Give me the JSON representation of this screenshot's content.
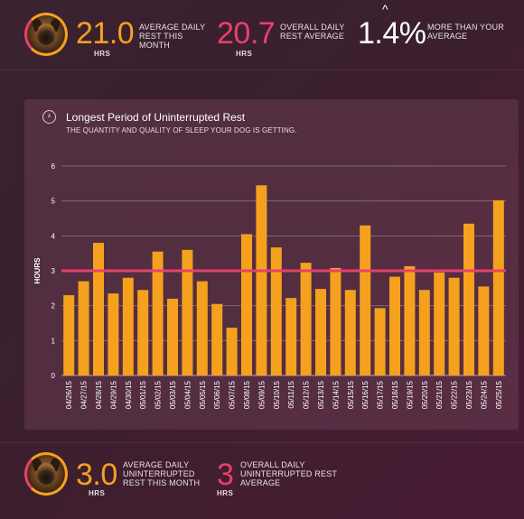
{
  "top_stats": {
    "avg_month": {
      "value": "21.0",
      "unit": "HRS",
      "label_line1": "AVERAGE DAILY",
      "label_line2": "REST THIS",
      "label_line3": "MONTH"
    },
    "overall": {
      "value": "20.7",
      "unit": "HRS",
      "label_line1": "OVERALL DAILY",
      "label_line2": "REST AVERAGE"
    },
    "diff": {
      "value": "1.4%",
      "label_line1": "MORE THAN YOUR",
      "label_line2": "AVERAGE"
    }
  },
  "panel": {
    "icon": "sleep-zzz-icon",
    "title": "Longest Period of Uninterrupted Rest",
    "subtitle": "THE QUANTITY AND QUALITY OF SLEEP YOUR DOG IS GETTING."
  },
  "bottom_stats": {
    "avg_month": {
      "value": "3.0",
      "unit": "HRS",
      "label_line1": "AVERAGE DAILY",
      "label_line2": "UNINTERRUPTED",
      "label_line3": "REST THIS MONTH"
    },
    "overall": {
      "value": "3",
      "unit": "HRS",
      "label_line1": "OVERALL DAILY",
      "label_line2": "UNINTERRUPTED REST",
      "label_line3": "AVERAGE"
    }
  },
  "colors": {
    "bar": "#f5a11e",
    "reference_line": "#e8406c",
    "accent_pink": "#e8406c",
    "accent_orange": "#f5a11e"
  },
  "chart_data": {
    "type": "bar",
    "title": "Longest Period of Uninterrupted Rest",
    "ylabel": "HOURS",
    "ylim": [
      0,
      6
    ],
    "yticks": [
      "0",
      "1",
      "2",
      "3",
      "4",
      "5",
      "6"
    ],
    "grid": true,
    "reference_line": 3,
    "categories": [
      "04/26/15",
      "04/27/15",
      "04/28/15",
      "04/29/15",
      "04/30/15",
      "05/01/15",
      "05/02/15",
      "05/03/15",
      "05/04/15",
      "05/05/15",
      "05/06/15",
      "05/07/15",
      "05/08/15",
      "05/09/15",
      "05/10/15",
      "05/11/15",
      "05/12/15",
      "05/13/15",
      "05/14/15",
      "05/15/15",
      "05/16/15",
      "05/17/15",
      "05/18/15",
      "05/19/15",
      "05/20/15",
      "05/21/15",
      "05/22/15",
      "05/23/15",
      "05/24/15",
      "05/25/15"
    ],
    "values": [
      2.3,
      2.7,
      3.8,
      2.35,
      2.8,
      2.45,
      3.55,
      2.2,
      3.6,
      2.7,
      2.05,
      1.37,
      4.05,
      5.45,
      3.67,
      2.22,
      3.23,
      2.48,
      3.08,
      2.45,
      4.3,
      1.93,
      2.83,
      3.13,
      2.45,
      2.95,
      2.8,
      4.35,
      2.55,
      5.02
    ]
  }
}
